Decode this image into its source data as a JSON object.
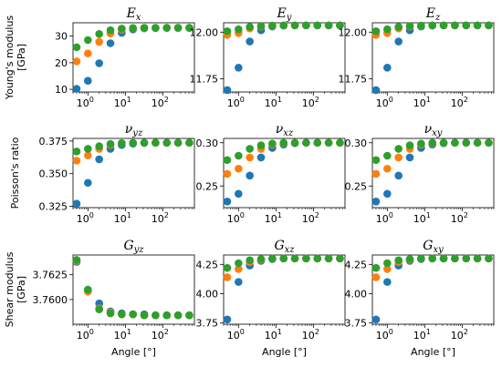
{
  "colors": {
    "blue": "#1f77b4",
    "orange": "#ff7f0e",
    "green": "#2ca02c"
  },
  "row_labels": [
    {
      "lines": [
        "Young's modulus",
        "[GPa]"
      ]
    },
    {
      "lines": [
        "Poisson's ratio"
      ]
    },
    {
      "lines": [
        "Shear modulus",
        "[GPa]"
      ]
    }
  ],
  "x_axis_label": "Angle [°]",
  "chart_data": [
    {
      "type": "scatter",
      "title": "E",
      "title_sub": "x",
      "xscale": "log",
      "xlim": [
        0.4,
        700
      ],
      "ylim": [
        9,
        35
      ],
      "yticks": [
        "10",
        "20",
        "30"
      ],
      "ytick_values": [
        10,
        20,
        30
      ],
      "x": [
        0.5,
        1,
        2,
        4,
        8,
        16,
        32,
        64,
        128,
        256,
        512
      ],
      "series": [
        {
          "color": "blue",
          "values": [
            10.2,
            13.2,
            19.8,
            27.3,
            31.2,
            32.5,
            32.9,
            33.0,
            33.1,
            33.1,
            33.1
          ]
        },
        {
          "color": "orange",
          "values": [
            20.5,
            23.5,
            27.8,
            31.0,
            32.4,
            32.9,
            33.0,
            33.1,
            33.1,
            33.1,
            33.1
          ]
        },
        {
          "color": "green",
          "values": [
            25.8,
            28.5,
            30.8,
            32.2,
            32.8,
            33.0,
            33.1,
            33.1,
            33.1,
            33.1,
            33.1
          ]
        }
      ]
    },
    {
      "type": "scatter",
      "title": "E",
      "title_sub": "y",
      "xscale": "log",
      "xlim": [
        0.4,
        700
      ],
      "ylim": [
        11.68,
        12.05
      ],
      "yticks": [
        "11.75",
        "12.00"
      ],
      "ytick_values": [
        11.75,
        12.0
      ],
      "x": [
        0.5,
        1,
        2,
        4,
        8,
        16,
        32,
        64,
        128,
        256,
        512
      ],
      "series": [
        {
          "color": "blue",
          "values": [
            11.69,
            11.81,
            11.95,
            12.01,
            12.03,
            12.035,
            12.036,
            12.036,
            12.036,
            12.036,
            12.036
          ]
        },
        {
          "color": "orange",
          "values": [
            11.985,
            11.995,
            12.02,
            12.03,
            12.034,
            12.036,
            12.036,
            12.036,
            12.036,
            12.036,
            12.036
          ]
        },
        {
          "color": "green",
          "values": [
            12.005,
            12.015,
            12.028,
            12.033,
            12.035,
            12.036,
            12.036,
            12.036,
            12.036,
            12.036,
            12.036
          ]
        }
      ]
    },
    {
      "type": "scatter",
      "title": "E",
      "title_sub": "z",
      "xscale": "log",
      "xlim": [
        0.4,
        700
      ],
      "ylim": [
        11.68,
        12.05
      ],
      "yticks": [
        "11.75",
        "12.00"
      ],
      "ytick_values": [
        11.75,
        12.0
      ],
      "x": [
        0.5,
        1,
        2,
        4,
        8,
        16,
        32,
        64,
        128,
        256,
        512
      ],
      "series": [
        {
          "color": "blue",
          "values": [
            11.69,
            11.81,
            11.95,
            12.01,
            12.03,
            12.035,
            12.036,
            12.036,
            12.036,
            12.036,
            12.036
          ]
        },
        {
          "color": "orange",
          "values": [
            11.985,
            11.995,
            12.02,
            12.03,
            12.034,
            12.036,
            12.036,
            12.036,
            12.036,
            12.036,
            12.036
          ]
        },
        {
          "color": "green",
          "values": [
            12.005,
            12.015,
            12.028,
            12.033,
            12.035,
            12.036,
            12.036,
            12.036,
            12.036,
            12.036,
            12.036
          ]
        }
      ]
    },
    {
      "type": "scatter",
      "title": "ν",
      "title_sub": "yz",
      "xscale": "log",
      "xlim": [
        0.4,
        700
      ],
      "ylim": [
        0.324,
        0.377
      ],
      "yticks": [
        "0.325",
        "0.350",
        "0.375"
      ],
      "ytick_values": [
        0.325,
        0.35,
        0.375
      ],
      "x": [
        0.5,
        1,
        2,
        4,
        8,
        16,
        32,
        64,
        128,
        256,
        512
      ],
      "series": [
        {
          "color": "blue",
          "values": [
            0.327,
            0.343,
            0.361,
            0.369,
            0.372,
            0.373,
            0.3735,
            0.3737,
            0.3737,
            0.3737,
            0.3737
          ]
        },
        {
          "color": "orange",
          "values": [
            0.36,
            0.364,
            0.369,
            0.372,
            0.3733,
            0.3736,
            0.3737,
            0.3737,
            0.3737,
            0.3737,
            0.3737
          ]
        },
        {
          "color": "green",
          "values": [
            0.367,
            0.369,
            0.371,
            0.3728,
            0.3734,
            0.3736,
            0.3737,
            0.3737,
            0.3737,
            0.3737,
            0.3737
          ]
        }
      ]
    },
    {
      "type": "scatter",
      "title": "ν",
      "title_sub": "xz",
      "xscale": "log",
      "xlim": [
        0.4,
        700
      ],
      "ylim": [
        0.225,
        0.305
      ],
      "yticks": [
        "0.25",
        "0.30"
      ],
      "ytick_values": [
        0.25,
        0.3
      ],
      "x": [
        0.5,
        1,
        2,
        4,
        8,
        16,
        32,
        64,
        128,
        256,
        512
      ],
      "series": [
        {
          "color": "blue",
          "values": [
            0.232,
            0.241,
            0.262,
            0.283,
            0.294,
            0.298,
            0.2995,
            0.3,
            0.3,
            0.3,
            0.3
          ]
        },
        {
          "color": "orange",
          "values": [
            0.264,
            0.27,
            0.283,
            0.293,
            0.298,
            0.2995,
            0.3,
            0.3,
            0.3,
            0.3,
            0.3
          ]
        },
        {
          "color": "green",
          "values": [
            0.28,
            0.285,
            0.293,
            0.297,
            0.299,
            0.3,
            0.3,
            0.3,
            0.3,
            0.3,
            0.3
          ]
        }
      ]
    },
    {
      "type": "scatter",
      "title": "ν",
      "title_sub": "xy",
      "xscale": "log",
      "xlim": [
        0.4,
        700
      ],
      "ylim": [
        0.225,
        0.305
      ],
      "yticks": [
        "0.25",
        "0.30"
      ],
      "ytick_values": [
        0.25,
        0.3
      ],
      "x": [
        0.5,
        1,
        2,
        4,
        8,
        16,
        32,
        64,
        128,
        256,
        512
      ],
      "series": [
        {
          "color": "blue",
          "values": [
            0.232,
            0.241,
            0.262,
            0.283,
            0.294,
            0.298,
            0.2995,
            0.3,
            0.3,
            0.3,
            0.3
          ]
        },
        {
          "color": "orange",
          "values": [
            0.264,
            0.27,
            0.283,
            0.293,
            0.298,
            0.2995,
            0.3,
            0.3,
            0.3,
            0.3,
            0.3
          ]
        },
        {
          "color": "green",
          "values": [
            0.28,
            0.285,
            0.293,
            0.297,
            0.299,
            0.3,
            0.3,
            0.3,
            0.3,
            0.3,
            0.3
          ]
        }
      ]
    },
    {
      "type": "scatter",
      "title": "G",
      "title_sub": "yz",
      "xscale": "log",
      "xlim": [
        0.4,
        700
      ],
      "ylim": [
        3.7575,
        3.7645
      ],
      "yticks": [
        "3.7600",
        "3.7625"
      ],
      "ytick_values": [
        3.76,
        3.7625
      ],
      "x": [
        0.5,
        1,
        2,
        4,
        8,
        16,
        32,
        64,
        128,
        256,
        512
      ],
      "series": [
        {
          "color": "blue",
          "values": [
            3.7638,
            3.7609,
            3.7596,
            3.7588,
            3.7586,
            3.7585,
            3.7585,
            3.7584,
            3.7584,
            3.7584,
            3.7584
          ]
        },
        {
          "color": "orange",
          "values": [
            3.7639,
            3.7608,
            3.7591,
            3.7587,
            3.7585,
            3.7585,
            3.7584,
            3.7584,
            3.7584,
            3.7584,
            3.7584
          ]
        },
        {
          "color": "green",
          "values": [
            3.764,
            3.761,
            3.759,
            3.7586,
            3.7585,
            3.7585,
            3.7584,
            3.7584,
            3.7584,
            3.7584,
            3.7584
          ]
        }
      ]
    },
    {
      "type": "scatter",
      "title": "G",
      "title_sub": "xz",
      "xscale": "log",
      "xlim": [
        0.4,
        700
      ],
      "ylim": [
        3.74,
        4.33
      ],
      "yticks": [
        "3.75",
        "4.00",
        "4.25"
      ],
      "ytick_values": [
        3.75,
        4.0,
        4.25
      ],
      "x": [
        0.5,
        1,
        2,
        4,
        8,
        16,
        32,
        64,
        128,
        256,
        512
      ],
      "series": [
        {
          "color": "blue",
          "values": [
            3.78,
            4.1,
            4.24,
            4.28,
            4.295,
            4.3,
            4.3,
            4.3,
            4.3,
            4.3,
            4.3
          ]
        },
        {
          "color": "orange",
          "values": [
            4.14,
            4.21,
            4.27,
            4.29,
            4.3,
            4.3,
            4.3,
            4.3,
            4.3,
            4.3,
            4.3
          ]
        },
        {
          "color": "green",
          "values": [
            4.22,
            4.26,
            4.285,
            4.295,
            4.3,
            4.3,
            4.3,
            4.3,
            4.3,
            4.3,
            4.3
          ]
        }
      ]
    },
    {
      "type": "scatter",
      "title": "G",
      "title_sub": "xy",
      "xscale": "log",
      "xlim": [
        0.4,
        700
      ],
      "ylim": [
        3.74,
        4.33
      ],
      "yticks": [
        "3.75",
        "4.00",
        "4.25"
      ],
      "ytick_values": [
        3.75,
        4.0,
        4.25
      ],
      "x": [
        0.5,
        1,
        2,
        4,
        8,
        16,
        32,
        64,
        128,
        256,
        512
      ],
      "series": [
        {
          "color": "blue",
          "values": [
            3.78,
            4.1,
            4.24,
            4.28,
            4.295,
            4.3,
            4.3,
            4.3,
            4.3,
            4.3,
            4.3
          ]
        },
        {
          "color": "orange",
          "values": [
            4.14,
            4.21,
            4.27,
            4.29,
            4.3,
            4.3,
            4.3,
            4.3,
            4.3,
            4.3,
            4.3
          ]
        },
        {
          "color": "green",
          "values": [
            4.22,
            4.26,
            4.285,
            4.295,
            4.3,
            4.3,
            4.3,
            4.3,
            4.3,
            4.3,
            4.3
          ]
        }
      ]
    }
  ],
  "x_ticks": [
    {
      "base": "10",
      "exp": "0",
      "value": 1
    },
    {
      "base": "10",
      "exp": "1",
      "value": 10
    },
    {
      "base": "10",
      "exp": "2",
      "value": 100
    }
  ]
}
